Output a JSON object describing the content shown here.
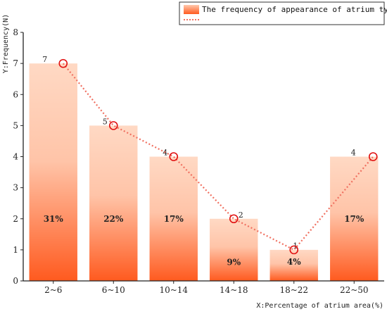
{
  "chart_data": {
    "type": "bar",
    "categories": [
      "2~6",
      "6~10",
      "10~14",
      "14~18",
      "18~22",
      "22~50"
    ],
    "values": [
      7,
      5,
      4,
      2,
      1,
      4
    ],
    "value_labels": [
      "7",
      "5",
      "4",
      "2",
      "1",
      "4"
    ],
    "percent_labels": [
      "31%",
      "22%",
      "17%",
      "9%",
      "4%",
      "17%"
    ],
    "line_series": [
      7,
      5,
      4,
      2,
      1,
      4
    ],
    "xlabel": "X:Percentage of atrium area(%)",
    "ylabel": "Y:Frequency(N)",
    "ylim": [
      0,
      8
    ],
    "yticks": [
      "0",
      "1",
      "2",
      "3",
      "4",
      "5",
      "6",
      "7",
      "8"
    ],
    "legend": {
      "position": "top-right",
      "entries": [
        "The frequency of appearance of atrium types",
        ""
      ]
    },
    "grid": false,
    "colors": {
      "bar_top": "#ffd9c4",
      "bar_bottom": "#ff5a1f",
      "line": "#f07060",
      "marker": "#e01010"
    }
  }
}
